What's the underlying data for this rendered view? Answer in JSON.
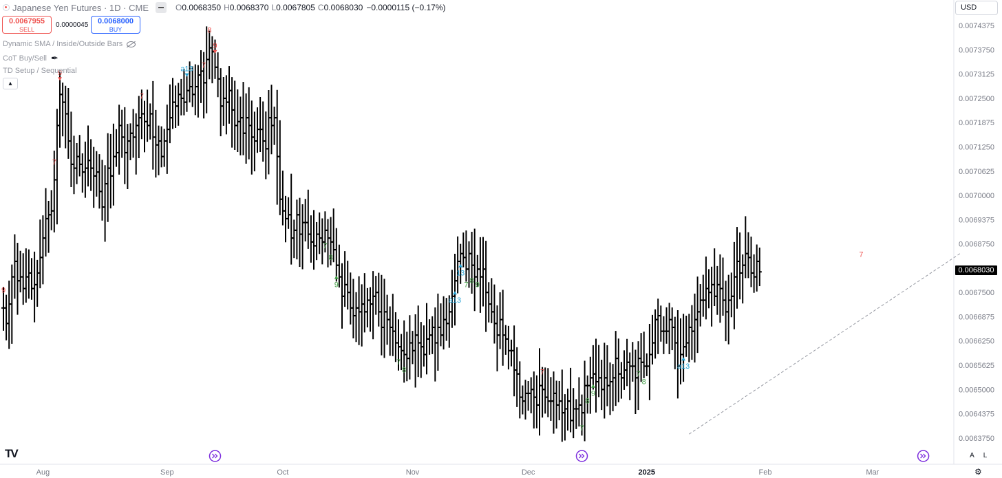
{
  "header": {
    "symbol_title": "Japanese Yen Futures · 1D · CME",
    "ohlc": [
      {
        "label": "O",
        "value": "0.0068350"
      },
      {
        "label": "H",
        "value": "0.0068370"
      },
      {
        "label": "L",
        "value": "0.0067805"
      },
      {
        "label": "C",
        "value": "0.0068030"
      }
    ],
    "change": "−0.0000115 (−0.17%)",
    "currency": "USD"
  },
  "trade": {
    "sell_price": "0.0067955",
    "sell_label": "SELL",
    "spread": "0.0000045",
    "buy_price": "0.0068000",
    "buy_label": "BUY"
  },
  "indicators": [
    {
      "name": "Dynamic SMA / Inside/Outside Bars",
      "icon": "eye-off-icon"
    },
    {
      "name": "CoT Buy/Sell",
      "icon": "feather-icon"
    },
    {
      "name": "TD Setup / Sequential",
      "icon": ""
    }
  ],
  "last_price": "0.0068030",
  "colors": {
    "bar": "#000000",
    "sell": "#ef5350",
    "buy_count": "#43a047",
    "sequential": "#26a2d4",
    "event": "#7b2bdd",
    "axis_text": "#787b86"
  },
  "chart_data": {
    "type": "ohlc-bar",
    "y_axis": {
      "min": 0.0063375,
      "max": 0.0074625,
      "ticks": [
        "0.0074375",
        "0.0073750",
        "0.0073125",
        "0.0072500",
        "0.0071875",
        "0.0071250",
        "0.0070625",
        "0.0070000",
        "0.0069375",
        "0.0068750",
        "0.0068125",
        "0.0067500",
        "0.0066875",
        "0.0066250",
        "0.0065625",
        "0.0065000",
        "0.0064375",
        "0.0063750"
      ]
    },
    "x_axis": {
      "labels": [
        {
          "label": "Aug",
          "bar": 14
        },
        {
          "label": "Sep",
          "bar": 58
        },
        {
          "label": "Oct",
          "bar": 99
        },
        {
          "label": "Nov",
          "bar": 145
        },
        {
          "label": "Dec",
          "bar": 186
        },
        {
          "label": "2025",
          "bar": 228,
          "bold": true
        },
        {
          "label": "Feb",
          "bar": 270
        },
        {
          "label": "Mar",
          "bar": 308
        }
      ]
    },
    "closes": [
      0.00671,
      0.00667,
      0.00672,
      0.00679,
      0.00683,
      0.00678,
      0.00679,
      0.00676,
      0.00679,
      0.0068,
      0.00676,
      0.00677,
      0.0068,
      0.00684,
      0.00689,
      0.00694,
      0.00695,
      0.00696,
      0.00704,
      0.00718,
      0.00726,
      0.00724,
      0.00721,
      0.00714,
      0.00708,
      0.00707,
      0.0071,
      0.00708,
      0.00706,
      0.00707,
      0.00709,
      0.00707,
      0.00705,
      0.00706,
      0.00701,
      0.00697,
      0.00703,
      0.00707,
      0.00705,
      0.0071,
      0.00711,
      0.00718,
      0.00715,
      0.00711,
      0.00714,
      0.00716,
      0.00715,
      0.00718,
      0.0072,
      0.00721,
      0.00719,
      0.00718,
      0.00721,
      0.00715,
      0.00713,
      0.00714,
      0.0071,
      0.00714,
      0.00717,
      0.0072,
      0.00724,
      0.00723,
      0.00726,
      0.00725,
      0.00724,
      0.00727,
      0.00728,
      0.00726,
      0.00728,
      0.00731,
      0.00732,
      0.00729,
      0.00735,
      0.00738,
      0.00737,
      0.00733,
      0.0073,
      0.00723,
      0.00725,
      0.00724,
      0.00727,
      0.00722,
      0.00718,
      0.00719,
      0.0072,
      0.00716,
      0.0072,
      0.00718,
      0.00715,
      0.00714,
      0.00717,
      0.00717,
      0.00714,
      0.00712,
      0.0072,
      0.00718,
      0.0072,
      0.0071,
      0.00699,
      0.00696,
      0.00694,
      0.00695,
      0.00689,
      0.00691,
      0.00695,
      0.0069,
      0.00693,
      0.00693,
      0.0069,
      0.00688,
      0.00687,
      0.0069,
      0.00689,
      0.00688,
      0.00691,
      0.00689,
      0.00688,
      0.00686,
      0.00682,
      0.00679,
      0.00674,
      0.00677,
      0.00675,
      0.00671,
      0.00669,
      0.00671,
      0.0067,
      0.00672,
      0.0067,
      0.00673,
      0.00672,
      0.00674,
      0.00675,
      0.0067,
      0.00666,
      0.0067,
      0.00668,
      0.00666,
      0.00665,
      0.00662,
      0.00661,
      0.0066,
      0.00659,
      0.00658,
      0.00662,
      0.0066,
      0.00664,
      0.00662,
      0.00661,
      0.00659,
      0.00663,
      0.00664,
      0.00666,
      0.00662,
      0.00666,
      0.00664,
      0.00668,
      0.00667,
      0.0067,
      0.00674,
      0.00678,
      0.00683,
      0.00685,
      0.00684,
      0.00681,
      0.00685,
      0.00682,
      0.00679,
      0.00681,
      0.00679,
      0.00681,
      0.00675,
      0.00672,
      0.0067,
      0.00667,
      0.00664,
      0.00668,
      0.00664,
      0.00663,
      0.0066,
      0.0066,
      0.00655,
      0.00654,
      0.00648,
      0.00647,
      0.00649,
      0.00649,
      0.0065,
      0.00648,
      0.00646,
      0.00651,
      0.0065,
      0.00648,
      0.00647,
      0.00647,
      0.00649,
      0.00646,
      0.00647,
      0.00644,
      0.00645,
      0.00647,
      0.00642,
      0.00645,
      0.00645,
      0.00646,
      0.00644,
      0.00651,
      0.00651,
      0.00653,
      0.00654,
      0.00652,
      0.00653,
      0.0065,
      0.00653,
      0.00651,
      0.00652,
      0.00653,
      0.00658,
      0.00654,
      0.00653,
      0.00655,
      0.00657,
      0.00656,
      0.00656,
      0.00653,
      0.00658,
      0.00657,
      0.00656,
      0.00656,
      0.00659,
      0.00662,
      0.00668,
      0.00669,
      0.00665,
      0.00665,
      0.00665,
      0.00668,
      0.00666,
      0.00662,
      0.00656,
      0.00659,
      0.00661,
      0.00662,
      0.00666,
      0.00665,
      0.00668,
      0.0067,
      0.00673,
      0.00673,
      0.00676,
      0.00675,
      0.00677,
      0.00674,
      0.00677,
      0.00676,
      0.00673,
      0.0067,
      0.00673,
      0.00674,
      0.00679,
      0.00683,
      0.0068,
      0.00682,
      0.00685,
      0.00684,
      0.0068,
      0.00679,
      0.00683,
      0.006803
    ],
    "seq_labels": [
      {
        "bar": 0,
        "text": "9",
        "color": "sell",
        "pos": "above"
      },
      {
        "bar": 18,
        "text": "7",
        "color": "sell",
        "pos": "above"
      },
      {
        "bar": 20,
        "text": "9",
        "color": "sell",
        "pos": "above",
        "arrow": "down"
      },
      {
        "bar": 49,
        "text": "7",
        "color": "sell",
        "pos": "above"
      },
      {
        "bar": 65,
        "text": "a13",
        "color": "sequential",
        "pos": "above",
        "arrow": "down"
      },
      {
        "bar": 71,
        "text": "7",
        "color": "sell",
        "pos": "above"
      },
      {
        "bar": 73,
        "text": "8",
        "color": "sell",
        "pos": "above"
      },
      {
        "bar": 75,
        "text": "9",
        "color": "sell",
        "pos": "above",
        "arrow": "down"
      },
      {
        "bar": 114,
        "text": "7",
        "color": "buy_count",
        "pos": "below"
      },
      {
        "bar": 116,
        "text": "8",
        "color": "buy_count",
        "pos": "below"
      },
      {
        "bar": 118,
        "text": "9",
        "color": "buy_count",
        "pos": "below",
        "arrow": "up"
      },
      {
        "bar": 140,
        "text": "7",
        "color": "buy_count",
        "pos": "below"
      },
      {
        "bar": 142,
        "text": "8",
        "color": "buy_count",
        "pos": "below"
      },
      {
        "bar": 160,
        "text": "a13",
        "color": "sequential",
        "pos": "below",
        "arrow": "up"
      },
      {
        "bar": 162,
        "text": "13",
        "color": "sequential",
        "pos": "below",
        "arrow": "up"
      },
      {
        "bar": 164,
        "text": "7",
        "color": "buy_count",
        "pos": "below"
      },
      {
        "bar": 166,
        "text": "8",
        "color": "buy_count",
        "pos": "below"
      },
      {
        "bar": 168,
        "text": "9",
        "color": "buy_count",
        "pos": "below"
      },
      {
        "bar": 191,
        "text": "7",
        "color": "sell",
        "pos": "above"
      },
      {
        "bar": 205,
        "text": "7",
        "color": "buy_count",
        "pos": "below"
      },
      {
        "bar": 207,
        "text": "8",
        "color": "buy_count",
        "pos": "below"
      },
      {
        "bar": 209,
        "text": "9",
        "color": "buy_count",
        "pos": "below",
        "arrow": "up"
      },
      {
        "bar": 225,
        "text": "7",
        "color": "buy_count",
        "pos": "below"
      },
      {
        "bar": 227,
        "text": "8",
        "color": "buy_count",
        "pos": "below"
      },
      {
        "bar": 241,
        "text": "a13",
        "color": "sequential",
        "pos": "below",
        "arrow": "up"
      },
      {
        "bar": 304,
        "text": "7",
        "color": "sell",
        "pos": "above"
      }
    ],
    "trendline": {
      "from": {
        "bar": 243,
        "price": 0.006385
      },
      "to": {
        "bar": 339,
        "price": 0.00685
      },
      "style": "dashed"
    },
    "event_markers": [
      {
        "bar": 75
      },
      {
        "bar": 205
      },
      {
        "bar": 326
      }
    ]
  },
  "footer": {
    "logo": "TV",
    "btn_auto": "A",
    "btn_log": "L"
  }
}
